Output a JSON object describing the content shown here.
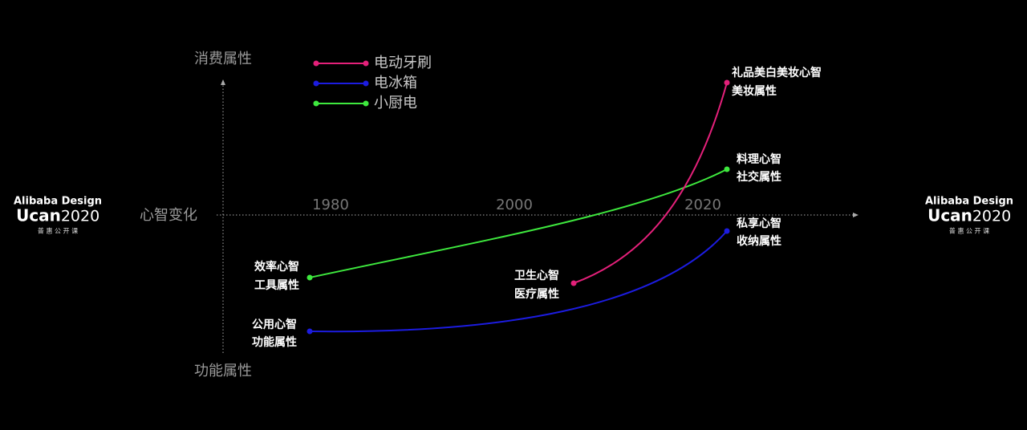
{
  "logo_left": {
    "brand": "Alibaba Design",
    "ucan": "Ucan",
    "year": "2020",
    "tagline": "普 惠 公 开 课"
  },
  "logo_right": {
    "brand": "Alibaba Design",
    "ucan": "Ucan",
    "year": "2020",
    "tagline": "普 惠 公 开 课"
  },
  "axis": {
    "top": "消费属性",
    "middle": "心智变化",
    "bottom": "功能属性",
    "years": [
      "1980",
      "2000",
      "2020"
    ]
  },
  "legend": [
    {
      "name": "电动牙刷",
      "color": "#e4207a"
    },
    {
      "name": "电冰箱",
      "color": "#1c1ce0"
    },
    {
      "name": "小厨电",
      "color": "#3ee83e"
    }
  ],
  "labels": [
    [
      "礼品美白美妆心智",
      "美妆属性"
    ],
    [
      "料理心智",
      "社交属性"
    ],
    [
      "私享心智",
      "收纳属性"
    ],
    [
      "卫生心智",
      "医疗属性"
    ],
    [
      "效率心智",
      "工具属性"
    ],
    [
      "公用心智",
      "功能属性"
    ]
  ]
}
